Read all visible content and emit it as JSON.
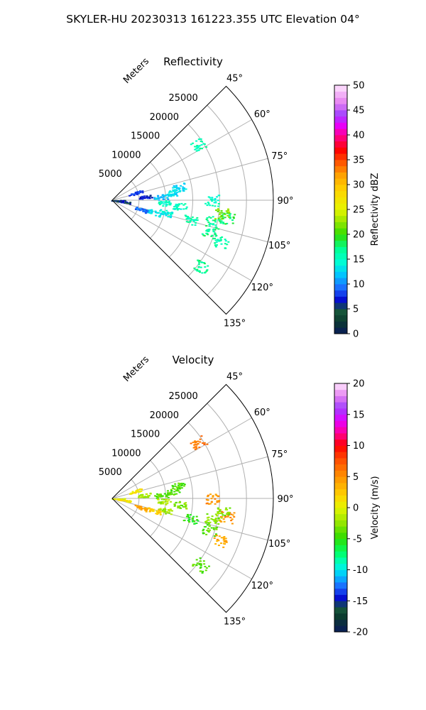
{
  "figure": {
    "suptitle": "SKYLER-HU  20230313  161223.355 UTC Elevation 04°"
  },
  "chart_data": [
    {
      "type": "heatmap",
      "title": "Reflectivity",
      "projection": "polar-sector",
      "azimuth_ticks": [
        "45°",
        "60°",
        "75°",
        "90°",
        "105°",
        "120°",
        "135°"
      ],
      "azimuth_range_deg": [
        45,
        135
      ],
      "range_ticks": [
        "5000",
        "10000",
        "15000",
        "20000",
        "25000"
      ],
      "range_max_m": 30000,
      "range_label": "Meters",
      "grid": true,
      "colorbar": {
        "label": "Reflectivity dBZ",
        "range": [
          0,
          50
        ],
        "ticks": [
          "0",
          "5",
          "10",
          "15",
          "20",
          "25",
          "30",
          "35",
          "40",
          "45",
          "50"
        ]
      },
      "echoes": [
        {
          "az": 86,
          "r": 9000,
          "value": 12
        },
        {
          "az": 83,
          "r": 11500,
          "value": 13
        },
        {
          "az": 79,
          "r": 12500,
          "value": 13
        },
        {
          "az": 93,
          "r": 9500,
          "value": 15
        },
        {
          "az": 95,
          "r": 12500,
          "value": 15
        },
        {
          "az": 103,
          "r": 10000,
          "value": 14
        },
        {
          "az": 106,
          "r": 8000,
          "value": 13
        },
        {
          "az": 108,
          "r": 5500,
          "value": 9
        },
        {
          "az": 104,
          "r": 15000,
          "value": 16
        },
        {
          "az": 99,
          "r": 21500,
          "value": 18
        },
        {
          "az": 102,
          "r": 19000,
          "value": 17
        },
        {
          "az": 108,
          "r": 19000,
          "value": 17
        },
        {
          "az": 111,
          "r": 21500,
          "value": 16
        },
        {
          "az": 97,
          "r": 20500,
          "value": 22
        },
        {
          "az": 72,
          "r": 4500,
          "value": 8
        },
        {
          "az": 84,
          "r": 6000,
          "value": 7
        },
        {
          "az": 90,
          "r": 1000,
          "value": 5
        },
        {
          "az": 98,
          "r": 2000,
          "value": 6
        },
        {
          "az": 127,
          "r": 20500,
          "value": 17
        },
        {
          "az": 57,
          "r": 19000,
          "value": 16
        },
        {
          "az": 90,
          "r": 18500,
          "value": 15
        }
      ]
    },
    {
      "type": "heatmap",
      "title": "Velocity",
      "projection": "polar-sector",
      "azimuth_ticks": [
        "45°",
        "60°",
        "75°",
        "90°",
        "105°",
        "120°",
        "135°"
      ],
      "azimuth_range_deg": [
        45,
        135
      ],
      "range_ticks": [
        "5000",
        "10000",
        "15000",
        "20000",
        "25000"
      ],
      "range_max_m": 30000,
      "range_label": "Meters",
      "grid": true,
      "colorbar": {
        "label": "Velocity (m/s)",
        "range": [
          -20,
          20
        ],
        "ticks": [
          "-20",
          "-15",
          "-10",
          "-5",
          "0",
          "5",
          "10",
          "15",
          "20"
        ]
      },
      "echoes": [
        {
          "az": 86,
          "r": 9000,
          "value": -4
        },
        {
          "az": 83,
          "r": 11500,
          "value": -4
        },
        {
          "az": 79,
          "r": 12500,
          "value": -4
        },
        {
          "az": 93,
          "r": 9500,
          "value": -2
        },
        {
          "az": 95,
          "r": 12500,
          "value": -3
        },
        {
          "az": 103,
          "r": 10000,
          "value": -2
        },
        {
          "az": 106,
          "r": 8000,
          "value": 2
        },
        {
          "az": 108,
          "r": 5500,
          "value": 4
        },
        {
          "az": 104,
          "r": 15000,
          "value": -5
        },
        {
          "az": 99,
          "r": 21500,
          "value": 5
        },
        {
          "az": 102,
          "r": 19000,
          "value": -3
        },
        {
          "az": 108,
          "r": 19000,
          "value": -4
        },
        {
          "az": 111,
          "r": 21500,
          "value": 4
        },
        {
          "az": 97,
          "r": 20500,
          "value": -3
        },
        {
          "az": 72,
          "r": 4500,
          "value": 1
        },
        {
          "az": 84,
          "r": 6000,
          "value": -2
        },
        {
          "az": 90,
          "r": 1000,
          "value": 0
        },
        {
          "az": 98,
          "r": 2000,
          "value": 1
        },
        {
          "az": 127,
          "r": 20500,
          "value": -4
        },
        {
          "az": 57,
          "r": 19000,
          "value": 6
        },
        {
          "az": 90,
          "r": 18500,
          "value": 5
        }
      ]
    }
  ]
}
